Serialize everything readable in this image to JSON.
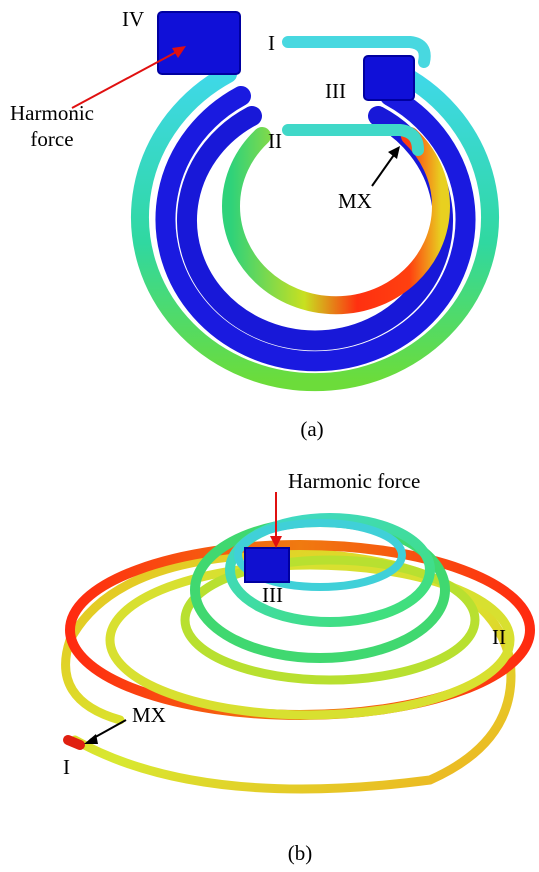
{
  "panels": [
    {
      "caption": "(a)",
      "labels": {
        "coil_iv": "IV",
        "coil_i": "I",
        "coil_iii": "III",
        "coil_ii": "II",
        "force": [
          "Harmonic",
          "force"
        ],
        "max": "MX"
      }
    },
    {
      "caption": "(b)",
      "labels": {
        "force": "Harmonic force",
        "coil_iii": "III",
        "coil_ii": "II",
        "max": "MX",
        "coil_i": "I"
      }
    }
  ]
}
